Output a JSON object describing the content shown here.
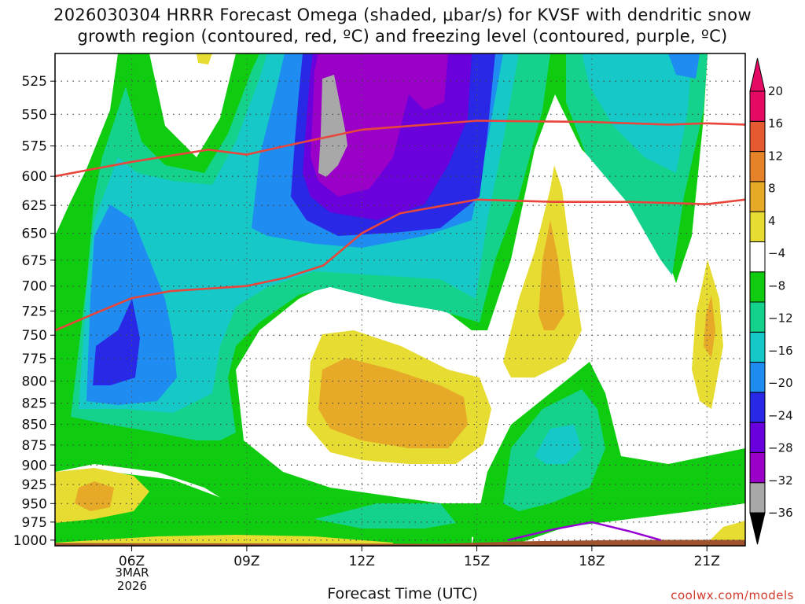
{
  "title_line1": "2026030304 HRRR Forecast Omega (shaded, μbar/s) for KVSF with dendritic snow",
  "title_line2": "growth region (contoured, red, ºC) and freezing level (contoured, purple, ºC)",
  "xlabel": "Forecast Time (UTC)",
  "credit": "coolwx.com/models",
  "date_label": [
    "3MAR",
    "2026"
  ],
  "chart_data": {
    "type": "contour",
    "x_ticks": [
      {
        "hour": 6,
        "label": "06Z"
      },
      {
        "hour": 9,
        "label": "09Z"
      },
      {
        "hour": 12,
        "label": "12Z"
      },
      {
        "hour": 15,
        "label": "15Z"
      },
      {
        "hour": 18,
        "label": "18Z"
      },
      {
        "hour": 21,
        "label": "21Z"
      }
    ],
    "x_range_hours": [
      4,
      22
    ],
    "y_ticks_mb": [
      525,
      550,
      575,
      600,
      625,
      650,
      675,
      700,
      725,
      750,
      775,
      800,
      825,
      850,
      875,
      900,
      925,
      950,
      975,
      1000
    ],
    "y_range_mb": [
      505,
      1008
    ],
    "y_scale": "log-pressure",
    "colorbar": {
      "boundaries": [
        -36,
        -32,
        -28,
        -24,
        -20,
        -16,
        -12,
        -8,
        -4,
        4,
        8,
        12,
        16,
        20
      ],
      "labels": [
        "20",
        "16",
        "12",
        "8",
        "4",
        "−4",
        "−8",
        "−12",
        "−16",
        "−20",
        "−24",
        "−28",
        "−32",
        "−36"
      ],
      "colors": [
        "#a8a8a8",
        "#9a00c8",
        "#6a00dc",
        "#2828e6",
        "#1e8cf0",
        "#16c8c8",
        "#14d28c",
        "#10cc10",
        "#ffffff",
        "#e6dc32",
        "#e6aa28",
        "#e68228",
        "#e65a32",
        "#e60a64"
      ]
    },
    "dgz_contours": {
      "color": "#e8463c",
      "lines": [
        [
          [
            4,
            600
          ],
          [
            6,
            588
          ],
          [
            8,
            578
          ],
          [
            9,
            582
          ],
          [
            10,
            575
          ],
          [
            12,
            562
          ],
          [
            15,
            555
          ],
          [
            18,
            556
          ],
          [
            20,
            558
          ],
          [
            21,
            557
          ],
          [
            22,
            558
          ]
        ],
        [
          [
            4,
            745
          ],
          [
            5,
            728
          ],
          [
            6,
            712
          ],
          [
            7,
            705
          ],
          [
            9,
            700
          ],
          [
            10,
            692
          ],
          [
            11,
            680
          ],
          [
            12,
            650
          ],
          [
            13,
            632
          ],
          [
            15,
            620
          ],
          [
            17,
            622
          ],
          [
            19,
            622
          ],
          [
            21,
            624
          ],
          [
            22,
            620
          ]
        ]
      ]
    },
    "freezing_level": {
      "color": "#9400d3",
      "line": [
        [
          15.8,
          1000
        ],
        [
          17,
          985
        ],
        [
          18,
          975
        ],
        [
          19,
          988
        ],
        [
          19.8,
          1000
        ]
      ]
    },
    "terrain": {
      "color": "#a0522d",
      "surface_mb": 1003
    }
  }
}
